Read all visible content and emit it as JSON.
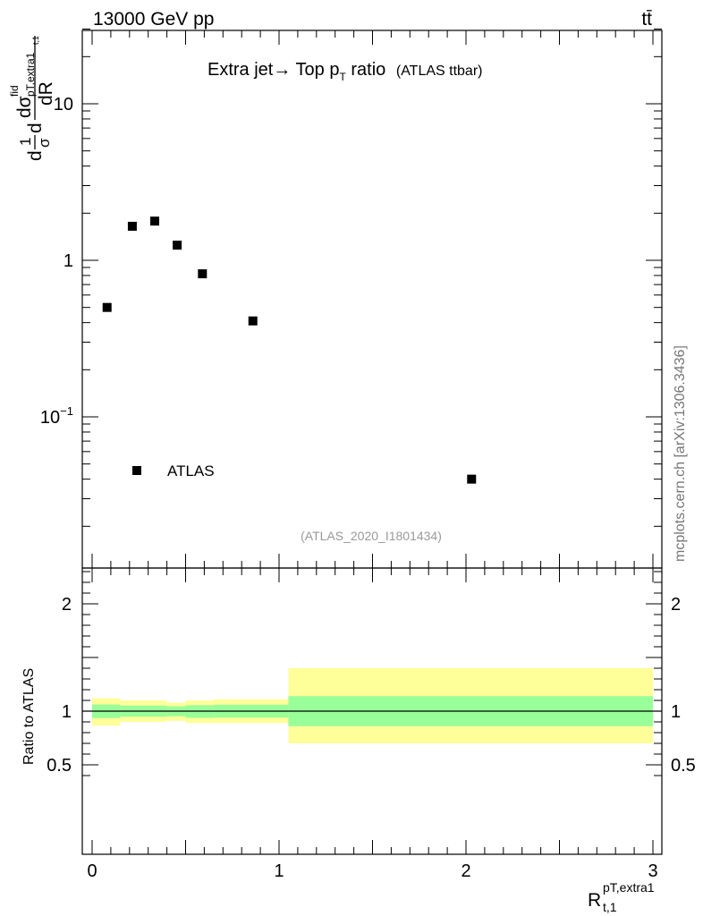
{
  "header": {
    "energy_label": "13000 GeV pp",
    "process_label": "tt̄"
  },
  "title": {
    "main": "Extra jet→ Top p",
    "main_sub": "T",
    "main_tail": " ratio",
    "paren": "(ATLAS ttbar)"
  },
  "analysis_id": "(ATLAS_2020_I1801434)",
  "watermark": "mcplots.cern.ch [arXiv:1306.3436]",
  "chart_data": [
    {
      "type": "scatter",
      "panel": "main",
      "yscale": "log",
      "ylim": [
        0.015,
        30
      ],
      "xlim": [
        -0.05,
        3.05
      ],
      "ylabel": {
        "part1": "d",
        "frac1_num": "1",
        "frac1_den": "σ",
        "part2": "d",
        "frac2_num": "dσ",
        "frac2_num_sup": "fid",
        "frac2_num_sub": "pT,extra1",
        "frac2_num_sub2": "t,1",
        "frac2_den": "dR"
      },
      "yticks": [
        {
          "value": 0.1,
          "label": "10",
          "sup": "−1"
        },
        {
          "value": 1,
          "label": "1",
          "sup": ""
        },
        {
          "value": 10,
          "label": "10",
          "sup": ""
        }
      ],
      "series": [
        {
          "name": "ATLAS",
          "color": "#000000",
          "marker": "square",
          "points": [
            {
              "x": 0.08,
              "y": 0.5
            },
            {
              "x": 0.215,
              "y": 1.65
            },
            {
              "x": 0.335,
              "y": 1.78
            },
            {
              "x": 0.455,
              "y": 1.25
            },
            {
              "x": 0.59,
              "y": 0.82
            },
            {
              "x": 0.86,
              "y": 0.41
            },
            {
              "x": 2.03,
              "y": 0.04
            }
          ]
        }
      ],
      "legend": {
        "position": "bottom-left",
        "label": "ATLAS"
      }
    },
    {
      "type": "area",
      "panel": "ratio",
      "ylabel": "Ratio to ATLAS",
      "ylim": [
        0.4,
        2.3
      ],
      "xlim": [
        -0.05,
        3.05
      ],
      "xlabel": {
        "main": "R",
        "sup": "pT,extra1",
        "sub": "t,1"
      },
      "xticks": [
        {
          "value": 0,
          "label": "0"
        },
        {
          "value": 1,
          "label": "1"
        },
        {
          "value": 2,
          "label": "2"
        },
        {
          "value": 3,
          "label": "3"
        }
      ],
      "yticks": [
        {
          "value": 0.5,
          "label": "0.5"
        },
        {
          "value": 1,
          "label": "1"
        },
        {
          "value": 2,
          "label": "2"
        }
      ],
      "reference_line": 1,
      "bands": [
        {
          "x_lo": 0.0,
          "x_hi": 0.15,
          "inner_lo": 0.936,
          "inner_hi": 1.062,
          "outer_lo": 0.865,
          "outer_hi": 1.12
        },
        {
          "x_lo": 0.15,
          "x_hi": 0.4,
          "inner_lo": 0.948,
          "inner_hi": 1.052,
          "outer_lo": 0.9,
          "outer_hi": 1.1
        },
        {
          "x_lo": 0.4,
          "x_hi": 0.5,
          "inner_lo": 0.952,
          "inner_hi": 1.045,
          "outer_lo": 0.91,
          "outer_hi": 1.08
        },
        {
          "x_lo": 0.5,
          "x_hi": 0.65,
          "inner_lo": 0.938,
          "inner_hi": 1.055,
          "outer_lo": 0.89,
          "outer_hi": 1.1
        },
        {
          "x_lo": 0.65,
          "x_hi": 1.05,
          "inner_lo": 0.94,
          "inner_hi": 1.06,
          "outer_lo": 0.89,
          "outer_hi": 1.11
        },
        {
          "x_lo": 1.05,
          "x_hi": 3.0,
          "inner_lo": 0.86,
          "inner_hi": 1.14,
          "outer_lo": 0.7,
          "outer_hi": 1.4
        }
      ],
      "colors": {
        "inner": "#99ff99",
        "outer": "#ffff99"
      }
    }
  ]
}
